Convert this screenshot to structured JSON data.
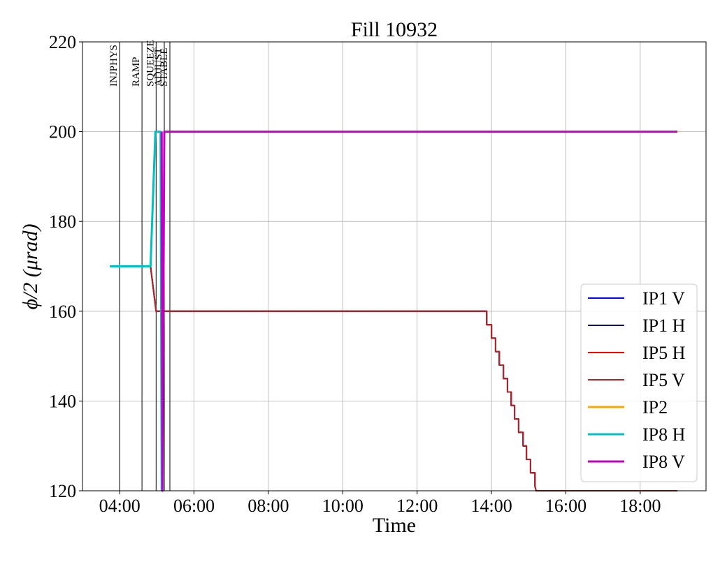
{
  "chart_data": {
    "type": "line",
    "title": "Fill 10932",
    "xlabel": "Time",
    "ylabel": "ϕ/2 (μrad)",
    "xlim": [
      3.0,
      19.77
    ],
    "ylim": [
      120,
      220
    ],
    "xticks": [
      {
        "value": 4,
        "label": "04:00"
      },
      {
        "value": 6,
        "label": "06:00"
      },
      {
        "value": 8,
        "label": "08:00"
      },
      {
        "value": 10,
        "label": "10:00"
      },
      {
        "value": 12,
        "label": "12:00"
      },
      {
        "value": 14,
        "label": "14:00"
      },
      {
        "value": 16,
        "label": "16:00"
      },
      {
        "value": 18,
        "label": "18:00"
      }
    ],
    "yticks": [
      120,
      140,
      160,
      180,
      200,
      220
    ],
    "grid": true,
    "legend": "lower right",
    "phases": [
      {
        "label": "INJPHYS",
        "x": 4.0
      },
      {
        "label": "RAMP",
        "x": 4.6
      },
      {
        "label": "SQUEEZE",
        "x": 4.98
      },
      {
        "label": "ADJUST",
        "x": 5.2
      },
      {
        "label": "STABLE",
        "x": 5.35
      }
    ],
    "series": [
      {
        "name": "IP1 V",
        "color": "#0000ff",
        "linewidth": 2,
        "x": [
          3.74,
          4.83,
          4.98,
          13.87,
          13.87,
          14.0,
          14.0,
          14.11,
          14.11,
          14.21,
          14.21,
          14.32,
          14.32,
          14.43,
          14.43,
          14.53,
          14.53,
          14.62,
          14.62,
          14.73,
          14.73,
          14.85,
          14.85,
          14.94,
          14.94,
          15.05,
          15.05,
          15.17,
          15.17,
          15.2,
          19.0
        ],
        "values": [
          170,
          170,
          160,
          160,
          157,
          157,
          154,
          154,
          151,
          151,
          148,
          148,
          145,
          145,
          142,
          142,
          139,
          139,
          136,
          136,
          133,
          133,
          130,
          130,
          127,
          127,
          124,
          124,
          121,
          120,
          120
        ]
      },
      {
        "name": "IP1 H",
        "color": "#00008b",
        "linewidth": 2,
        "x": [
          3.74,
          4.83,
          4.98,
          13.87,
          13.87,
          14.0,
          14.0,
          14.11,
          14.11,
          14.21,
          14.21,
          14.32,
          14.32,
          14.43,
          14.43,
          14.53,
          14.53,
          14.62,
          14.62,
          14.73,
          14.73,
          14.85,
          14.85,
          14.94,
          14.94,
          15.05,
          15.05,
          15.17,
          15.17,
          15.2,
          19.0
        ],
        "values": [
          170,
          170,
          160,
          160,
          157,
          157,
          154,
          154,
          151,
          151,
          148,
          148,
          145,
          145,
          142,
          142,
          139,
          139,
          136,
          136,
          133,
          133,
          130,
          130,
          127,
          127,
          124,
          124,
          121,
          120,
          120
        ]
      },
      {
        "name": "IP5 H",
        "color": "#ff0000",
        "linewidth": 2,
        "x": [
          3.74,
          4.83,
          4.98,
          13.87,
          13.87,
          14.0,
          14.0,
          14.11,
          14.11,
          14.21,
          14.21,
          14.32,
          14.32,
          14.43,
          14.43,
          14.53,
          14.53,
          14.62,
          14.62,
          14.73,
          14.73,
          14.85,
          14.85,
          14.94,
          14.94,
          15.05,
          15.05,
          15.17,
          15.17,
          15.2,
          19.0
        ],
        "values": [
          170,
          170,
          160,
          160,
          157,
          157,
          154,
          154,
          151,
          151,
          148,
          148,
          145,
          145,
          142,
          142,
          139,
          139,
          136,
          136,
          133,
          133,
          130,
          130,
          127,
          127,
          124,
          124,
          121,
          120,
          120
        ]
      },
      {
        "name": "IP5 V",
        "color": "#a52a2a",
        "linewidth": 2,
        "x": [
          3.74,
          4.83,
          4.98,
          13.87,
          13.87,
          14.0,
          14.0,
          14.11,
          14.11,
          14.21,
          14.21,
          14.32,
          14.32,
          14.43,
          14.43,
          14.53,
          14.53,
          14.62,
          14.62,
          14.73,
          14.73,
          14.85,
          14.85,
          14.94,
          14.94,
          15.05,
          15.05,
          15.17,
          15.17,
          15.2,
          19.0
        ],
        "values": [
          170,
          170,
          160,
          160,
          157,
          157,
          154,
          154,
          151,
          151,
          148,
          148,
          145,
          145,
          142,
          142,
          139,
          139,
          136,
          136,
          133,
          133,
          130,
          130,
          127,
          127,
          124,
          124,
          121,
          120,
          120
        ]
      },
      {
        "name": "IP2",
        "color": "#ffa500",
        "linewidth": 3,
        "x": [],
        "values": []
      },
      {
        "name": "IP8 H",
        "color": "#00bfbf",
        "linewidth": 3,
        "x": [
          3.74,
          4.83,
          4.96,
          5.1,
          5.13
        ],
        "values": [
          170,
          170,
          200,
          200,
          120
        ]
      },
      {
        "name": "IP8 V",
        "color": "#bf00bf",
        "linewidth": 3,
        "x": [
          5.13,
          5.15,
          5.2,
          19.0
        ],
        "values": [
          200,
          120,
          200,
          200
        ]
      }
    ]
  }
}
